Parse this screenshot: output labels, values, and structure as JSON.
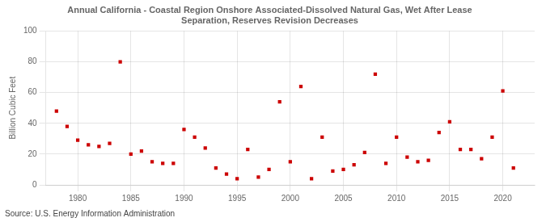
{
  "chart_data": {
    "type": "scatter",
    "title": "Annual California - Coastal Region Onshore Associated-Dissolved Natural Gas, Wet After Lease\nSeparation, Reserves Revision Decreases",
    "ylabel": "Billion Cubic Feet",
    "annotations": [
      "Source: U.S. Energy Information Administration"
    ],
    "x": [
      1978,
      1979,
      1980,
      1981,
      1982,
      1983,
      1984,
      1985,
      1986,
      1987,
      1988,
      1989,
      1990,
      1991,
      1992,
      1993,
      1994,
      1995,
      1996,
      1997,
      1998,
      1999,
      2000,
      2001,
      2002,
      2003,
      2004,
      2005,
      2006,
      2007,
      2008,
      2009,
      2010,
      2011,
      2012,
      2013,
      2014,
      2015,
      2016,
      2017,
      2018,
      2019,
      2020,
      2021
    ],
    "values": [
      48,
      38,
      29,
      26,
      25,
      27,
      80,
      20,
      22,
      15,
      14,
      14,
      36,
      31,
      24,
      11,
      7,
      4,
      23,
      5,
      10,
      54,
      15,
      64,
      4,
      31,
      9,
      10,
      13,
      21,
      72,
      14,
      31,
      18,
      15,
      16,
      34,
      41,
      23,
      23,
      17,
      31,
      61,
      11
    ],
    "color": "#cc0000",
    "marker": "square",
    "xlim": [
      1977,
      2023
    ],
    "ylim": [
      0,
      100
    ],
    "xticks": [
      1980,
      1985,
      1990,
      1995,
      2000,
      2005,
      2010,
      2015,
      2020
    ],
    "yticks": [
      0,
      20,
      40,
      60,
      80,
      100
    ],
    "grid": true
  }
}
